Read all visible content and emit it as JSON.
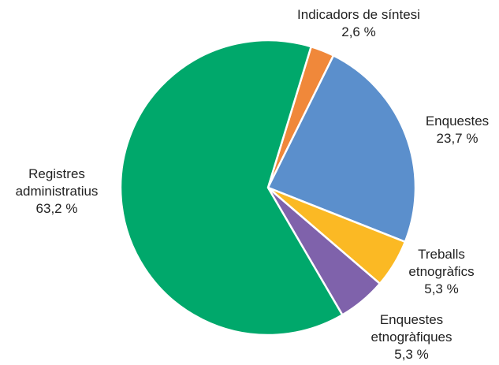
{
  "chart_data": {
    "type": "pie",
    "categories": [
      "Indicadors de síntesi",
      "Enquestes",
      "Treballs etnogràfics",
      "Enquestes etnogràfiques",
      "Registres administratius"
    ],
    "values": [
      2.6,
      23.7,
      5.3,
      5.3,
      63.2
    ],
    "value_labels": [
      "2,6 %",
      "23,7 %",
      "5,3 %",
      "5,3 %",
      "63,2 %"
    ],
    "colors": [
      "#f0883a",
      "#5b8fcc",
      "#fbb924",
      "#7f62ab",
      "#00a86b"
    ]
  }
}
